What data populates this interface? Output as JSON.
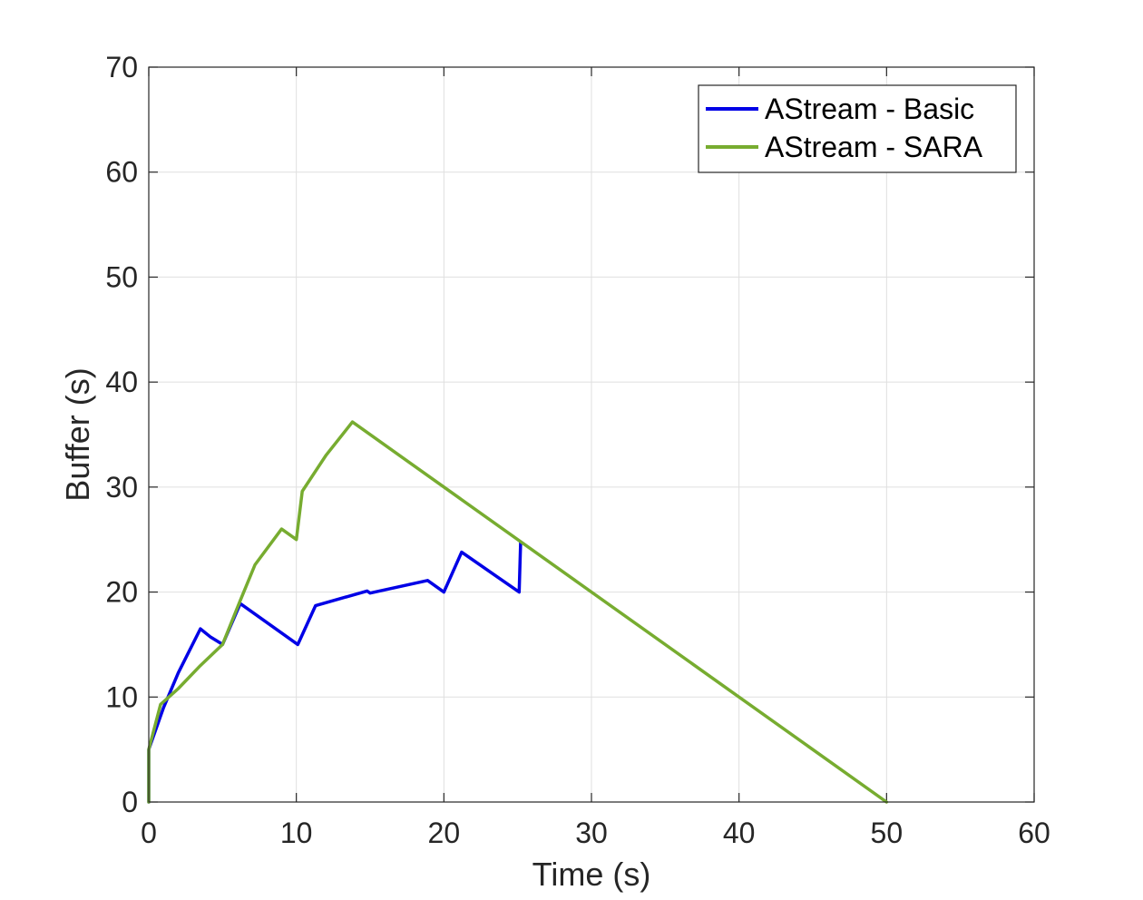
{
  "chart_data": {
    "type": "line",
    "title": "",
    "xlabel": "Time (s)",
    "ylabel": "Buffer (s)",
    "xlim": [
      0,
      60
    ],
    "ylim": [
      0,
      70
    ],
    "xticks": [
      0,
      10,
      20,
      30,
      40,
      50,
      60
    ],
    "yticks": [
      0,
      10,
      20,
      30,
      40,
      50,
      60,
      70
    ],
    "xtick_labels": [
      "0",
      "10",
      "20",
      "30",
      "40",
      "50",
      "60"
    ],
    "ytick_labels": [
      "0",
      "10",
      "20",
      "30",
      "40",
      "50",
      "60",
      "70"
    ],
    "grid": true,
    "legend_position": "top-right",
    "series": [
      {
        "name": "AStream - Basic",
        "color": "#0000e6",
        "x": [
          0,
          0,
          1,
          2,
          3.5,
          4.2,
          4.9,
          5.0,
          6.2,
          10.1,
          11.3,
          14.8,
          15.0,
          18.9,
          20.0,
          21.2,
          25.1,
          25.2
        ],
        "y": [
          0,
          5,
          9,
          12.3,
          16.5,
          15.7,
          15.1,
          15.0,
          18.9,
          15.0,
          18.7,
          20.1,
          19.9,
          21.1,
          20.0,
          23.8,
          20.0,
          24.7
        ]
      },
      {
        "name": "AStream - SARA",
        "color": "#77ac30",
        "x": [
          0,
          0,
          0.8,
          2.0,
          3.5,
          5.0,
          6.2,
          7.2,
          9.0,
          10.0,
          10.4,
          12.0,
          13.8,
          50.0
        ],
        "y": [
          0,
          5,
          9.3,
          10.8,
          13.0,
          15.0,
          19.2,
          22.6,
          26.0,
          25.0,
          29.6,
          33.0,
          36.2,
          0
        ]
      }
    ]
  }
}
